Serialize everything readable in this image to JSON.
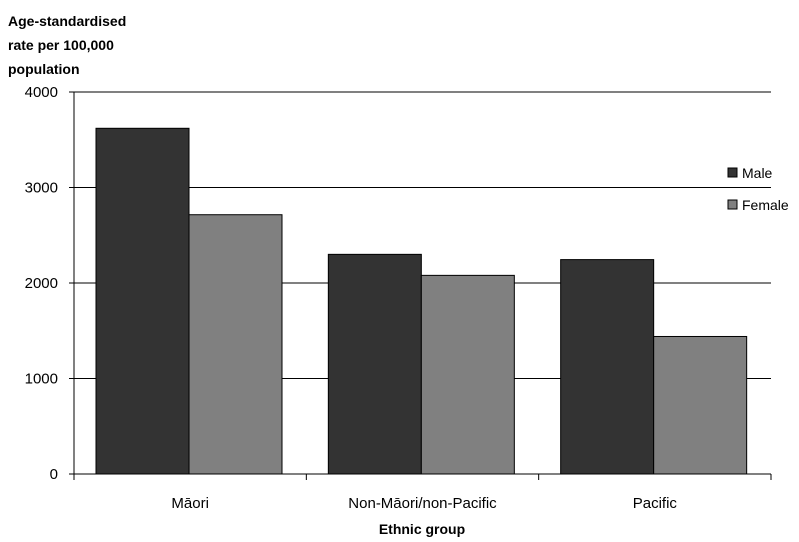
{
  "chart_data": {
    "type": "bar",
    "title": "",
    "ylabel_lines": [
      "Age-standardised",
      "rate per 100,000",
      "population"
    ],
    "xlabel": "Ethnic group",
    "categories": [
      "Māori",
      "Non-Māori/non-Pacific",
      "Pacific"
    ],
    "series": [
      {
        "name": "Male",
        "color": "#333333",
        "values": [
          3620,
          2300,
          2245
        ]
      },
      {
        "name": "Female",
        "color": "#808080",
        "values": [
          2715,
          2080,
          1440
        ]
      }
    ],
    "ylim": [
      0,
      4000
    ],
    "yticks": [
      0,
      1000,
      2000,
      3000,
      4000
    ],
    "grid": true,
    "legend_position": "right"
  }
}
